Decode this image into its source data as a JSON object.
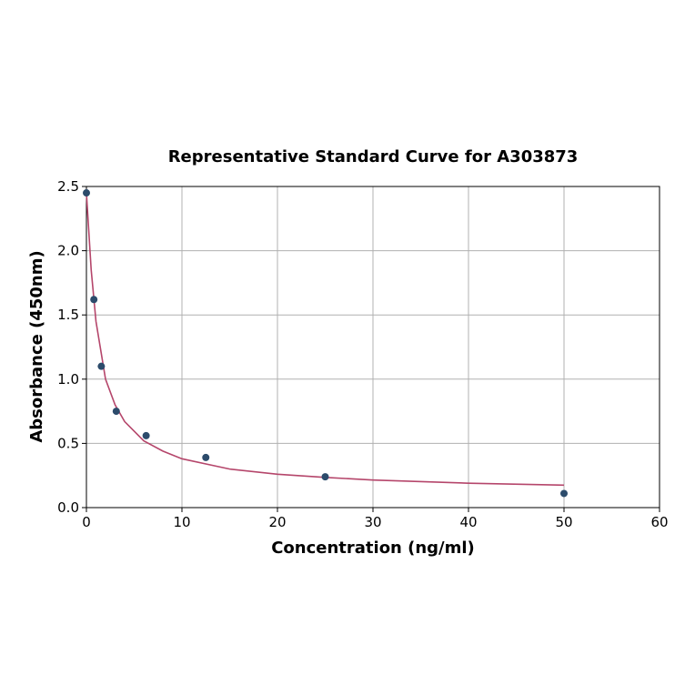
{
  "chart_data": {
    "type": "scatter",
    "title": "Representative Standard Curve for A303873",
    "x_label": "Concentration (ng/ml)",
    "y_label": "Absorbance (450nm)",
    "xlim": [
      0,
      60
    ],
    "xticks": [
      0,
      10,
      20,
      30,
      40,
      50,
      60
    ],
    "ylim": [
      0,
      2.5
    ],
    "yticks": [
      {
        "value": 0,
        "label": "0.0"
      },
      0.5,
      {
        "value": 1,
        "label": "1.0"
      },
      1.5,
      {
        "value": 2,
        "label": "2.0"
      },
      2.5
    ],
    "grid": true,
    "series": [
      {
        "type": "line",
        "color": "#b5466b",
        "x": [
          0,
          0.5,
          1,
          2,
          3,
          4,
          6,
          8,
          10,
          15,
          20,
          25,
          30,
          40,
          50
        ],
        "values": [
          2.45,
          1.85,
          1.45,
          1.0,
          0.8,
          0.67,
          0.52,
          0.44,
          0.38,
          0.3,
          0.26,
          0.235,
          0.215,
          0.19,
          0.175
        ]
      },
      {
        "type": "scatter",
        "color": "#2c4b6b",
        "x": [
          0,
          0.78,
          1.56,
          3.125,
          6.25,
          12.5,
          25,
          50
        ],
        "values": [
          2.45,
          1.62,
          1.1,
          0.75,
          0.56,
          0.39,
          0.24,
          0.11
        ]
      }
    ]
  }
}
